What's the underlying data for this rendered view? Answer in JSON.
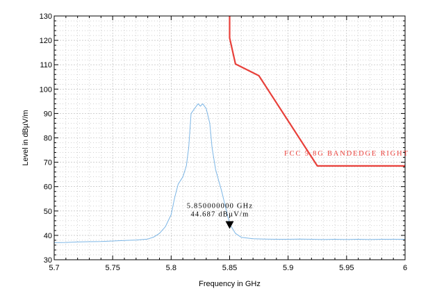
{
  "chart_data": {
    "type": "line",
    "xlabel": "Frequency in GHz",
    "ylabel": "Level in dBµV/m",
    "xlim": [
      5.7,
      6.0
    ],
    "ylim": [
      30,
      130
    ],
    "x_ticks": [
      "5.7",
      "5.75",
      "5.8",
      "5.85",
      "5.9",
      "5.95",
      "6"
    ],
    "y_ticks": [
      "30",
      "40",
      "50",
      "60",
      "70",
      "80",
      "90",
      "100",
      "110",
      "120",
      "130"
    ],
    "grid": true,
    "colors": {
      "measurement": "#7cb6e6",
      "limit": "#e8403a",
      "grid": "#b4b4b4",
      "axis": "#000000"
    },
    "series": [
      {
        "x": [
          5.7,
          5.71,
          5.72,
          5.73,
          5.74,
          5.75,
          5.76,
          5.77,
          5.78,
          5.785,
          5.79,
          5.795,
          5.8,
          5.803,
          5.806,
          5.81,
          5.813,
          5.815,
          5.817,
          5.82,
          5.823,
          5.825,
          5.827,
          5.83,
          5.833,
          5.835,
          5.838,
          5.84,
          5.843,
          5.846,
          5.85,
          5.855,
          5.86,
          5.87,
          5.88,
          5.89,
          5.9,
          5.91,
          5.92,
          5.93,
          5.94,
          5.95,
          5.96,
          5.97,
          5.98,
          5.99,
          6.0
        ],
        "values": [
          37.0,
          37.1,
          37.3,
          37.4,
          37.5,
          37.7,
          37.9,
          38.1,
          38.5,
          39.3,
          40.8,
          43.5,
          48.5,
          55.5,
          61.0,
          64.0,
          68.5,
          76.0,
          90.0,
          92.0,
          94.0,
          93.0,
          94.0,
          92.0,
          86.0,
          76.0,
          67.0,
          63.5,
          58.5,
          52.5,
          44.7,
          40.8,
          39.2,
          38.6,
          38.5,
          38.4,
          38.4,
          38.5,
          38.4,
          38.3,
          38.4,
          38.3,
          38.4,
          38.3,
          38.4,
          38.4,
          38.4
        ]
      },
      {
        "name": "FCC 5.8G BANDEDGE RIGHT",
        "x": [
          5.85,
          5.85,
          5.855,
          5.875,
          5.925,
          6.0
        ],
        "values": [
          130.0,
          121.0,
          110.3,
          105.5,
          68.5,
          68.5
        ]
      }
    ],
    "marker": {
      "x": 5.85,
      "y": 44.687,
      "freq_label": "5.850000000 GHz",
      "level_label": "44.687 dBµV/m"
    }
  }
}
